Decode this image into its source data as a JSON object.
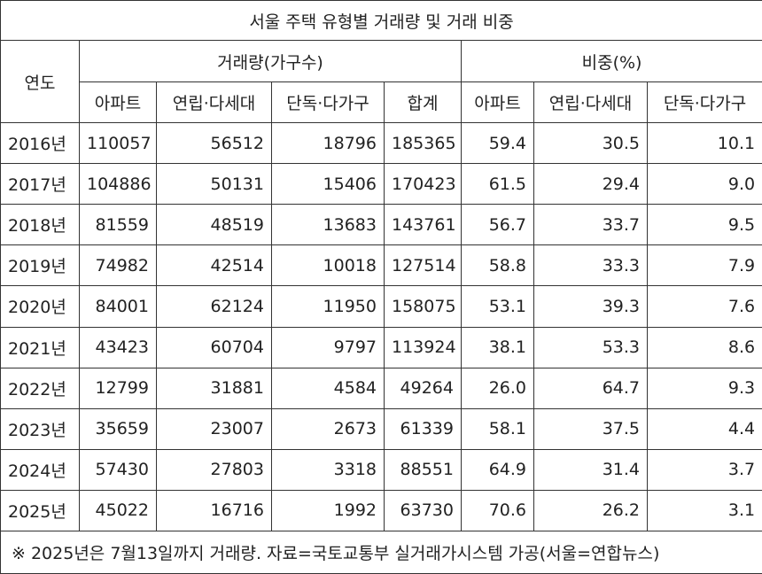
{
  "table": {
    "title": "서울 주택 유형별 거래량 및 거래 비중",
    "year_header": "연도",
    "groups": [
      "거래량(가구수)",
      "비중(%)"
    ],
    "columns": [
      "아파트",
      "연립·다세대",
      "단독·다가구",
      "합계",
      "아파트",
      "연립·다세대",
      "단독·다가구"
    ],
    "rows": [
      [
        "2016년",
        "110057",
        "56512",
        "18796",
        "185365",
        "59.4",
        "30.5",
        "10.1"
      ],
      [
        "2017년",
        "104886",
        "50131",
        "15406",
        "170423",
        "61.5",
        "29.4",
        "9.0"
      ],
      [
        "2018년",
        "81559",
        "48519",
        "13683",
        "143761",
        "56.7",
        "33.7",
        "9.5"
      ],
      [
        "2019년",
        "74982",
        "42514",
        "10018",
        "127514",
        "58.8",
        "33.3",
        "7.9"
      ],
      [
        "2020년",
        "84001",
        "62124",
        "11950",
        "158075",
        "53.1",
        "39.3",
        "7.6"
      ],
      [
        "2021년",
        "43423",
        "60704",
        "9797",
        "113924",
        "38.1",
        "53.3",
        "8.6"
      ],
      [
        "2022년",
        "12799",
        "31881",
        "4584",
        "49264",
        "26.0",
        "64.7",
        "9.3"
      ],
      [
        "2023년",
        "35659",
        "23007",
        "2673",
        "61339",
        "58.1",
        "37.5",
        "4.4"
      ],
      [
        "2024년",
        "57430",
        "27803",
        "3318",
        "88551",
        "64.9",
        "31.4",
        "3.7"
      ],
      [
        "2025년",
        "45022",
        "16716",
        "1992",
        "63730",
        "70.6",
        "26.2",
        "3.1"
      ]
    ],
    "footnote": "※ 2025년은 7월13일까지 거래량. 자료=국토교통부 실거래가시스템 가공(서울=연합뉴스)"
  }
}
